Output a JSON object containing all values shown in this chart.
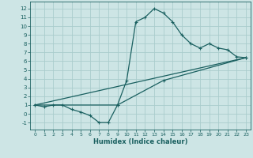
{
  "xlabel": "Humidex (Indice chaleur)",
  "ylabel": "",
  "bg_color": "#cde5e5",
  "grid_color": "#aacccc",
  "line_color": "#1a6060",
  "xlim": [
    -0.5,
    23.5
  ],
  "ylim": [
    -1.8,
    12.8
  ],
  "xticks": [
    0,
    1,
    2,
    3,
    4,
    5,
    6,
    7,
    8,
    9,
    10,
    11,
    12,
    13,
    14,
    15,
    16,
    17,
    18,
    19,
    20,
    21,
    22,
    23
  ],
  "yticks": [
    -1,
    0,
    1,
    2,
    3,
    4,
    5,
    6,
    7,
    8,
    9,
    10,
    11,
    12
  ],
  "curve1_x": [
    0,
    1,
    2,
    3,
    4,
    5,
    6,
    7,
    8,
    9,
    10,
    11,
    12,
    13,
    14,
    15,
    16,
    17,
    18,
    19,
    20,
    21,
    22,
    23
  ],
  "curve1_y": [
    1.0,
    0.8,
    1.0,
    1.0,
    0.5,
    0.2,
    -0.2,
    -1.0,
    -1.0,
    1.0,
    3.8,
    10.5,
    11.0,
    12.0,
    11.5,
    10.5,
    9.0,
    8.0,
    7.5,
    8.0,
    7.5,
    7.3,
    6.5,
    6.4
  ],
  "curve2_x": [
    0,
    9,
    14,
    23
  ],
  "curve2_y": [
    1.0,
    1.0,
    3.8,
    6.4
  ],
  "curve3_x": [
    0,
    23
  ],
  "curve3_y": [
    1.0,
    6.4
  ]
}
